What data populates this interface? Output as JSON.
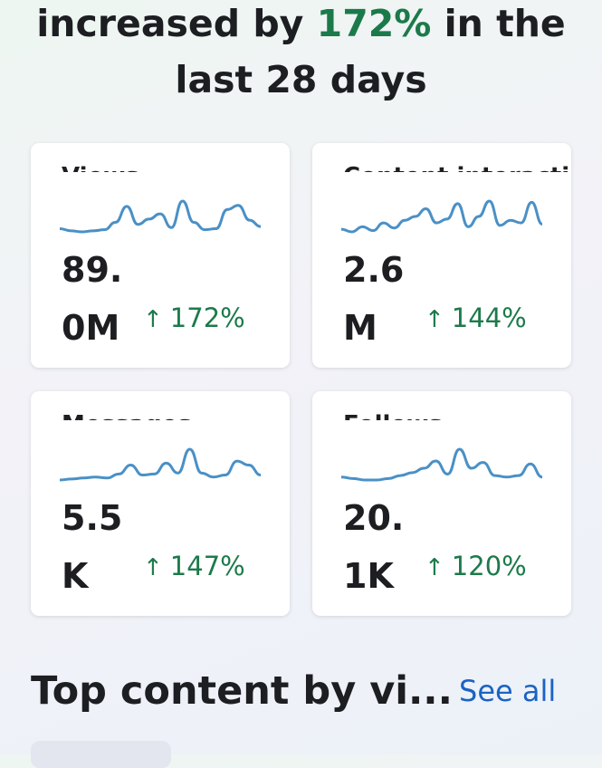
{
  "headline": {
    "prefix": "increased by ",
    "percent": "172%",
    "suffix": " in the last 28 days"
  },
  "cards": [
    {
      "label": "Views",
      "value": "89.0M",
      "delta": "172%",
      "series": [
        4,
        2,
        1,
        2,
        3,
        10,
        25,
        8,
        13,
        18,
        5,
        30,
        10,
        3,
        4,
        22,
        26,
        12,
        6
      ]
    },
    {
      "label": "Content interactions",
      "value": "2.6M",
      "delta": "144%",
      "series": [
        4,
        2,
        6,
        3,
        9,
        5,
        11,
        14,
        20,
        9,
        12,
        24,
        6,
        14,
        26,
        7,
        11,
        9,
        25,
        8
      ]
    },
    {
      "label": "Messages",
      "value": "5.5K",
      "delta": "147%",
      "series": [
        3,
        4,
        5,
        6,
        5,
        9,
        18,
        8,
        9,
        20,
        10,
        34,
        10,
        6,
        8,
        22,
        18,
        8
      ]
    },
    {
      "label": "Follows",
      "value": "20.1K",
      "delta": "120%",
      "series": [
        6,
        5,
        4,
        4,
        5,
        7,
        9,
        12,
        17,
        8,
        25,
        12,
        16,
        7,
        6,
        7,
        15,
        6
      ]
    }
  ],
  "section": {
    "title": "Top content by vi...",
    "see_all": "See all"
  },
  "colors": {
    "accent_green": "#1c7a4a",
    "spark_blue": "#4a90c6",
    "link_blue": "#1a63c4"
  }
}
